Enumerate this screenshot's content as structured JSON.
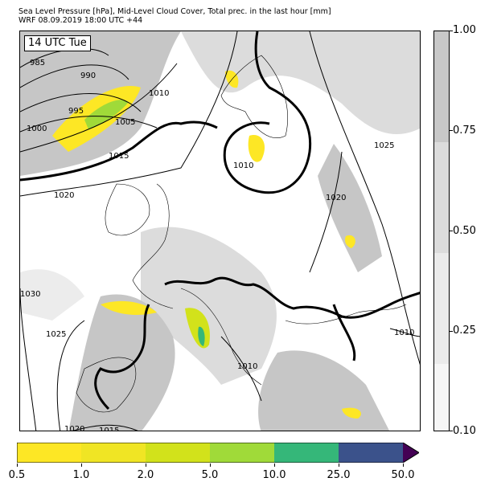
{
  "title": {
    "line1": "Sea Level Pressure [hPa], Mid-Level Cloud Cover, Total prec. in the last hour [mm]",
    "line2": "WRF 08.09.2019 18:00 UTC +44"
  },
  "map": {
    "time_label": "14 UTC Tue",
    "isobar_labels": [
      "985",
      "990",
      "995",
      "1000",
      "1005",
      "1010",
      "1015",
      "1020",
      "1010",
      "1020",
      "1025",
      "1030",
      "1025",
      "1020",
      "1015",
      "1010",
      "1010"
    ],
    "colors": {
      "coastline": "#000000",
      "isobar": "#000000",
      "cloud_light": "#ececec",
      "cloud_mid": "#dcdcdc",
      "cloud_dark": "#c6c6c6"
    }
  },
  "cloud_colorbar": {
    "ticks": [
      "1.00",
      "0.75",
      "0.50",
      "0.25",
      "0.10"
    ],
    "fractions": [
      1.0,
      0.75,
      0.5,
      0.25,
      0.1
    ],
    "colors": [
      "#c8c8c8",
      "#dcdcdc",
      "#ebebeb",
      "#f6f6f6"
    ]
  },
  "precip_colorbar": {
    "ticks": [
      "0.5",
      "1.0",
      "2.0",
      "5.0",
      "10.0",
      "25.0",
      "50.0"
    ],
    "colors": [
      "#fde725",
      "#f0e524",
      "#d2e21b",
      "#a0da39",
      "#35b779",
      "#3b528b",
      "#440154"
    ]
  }
}
